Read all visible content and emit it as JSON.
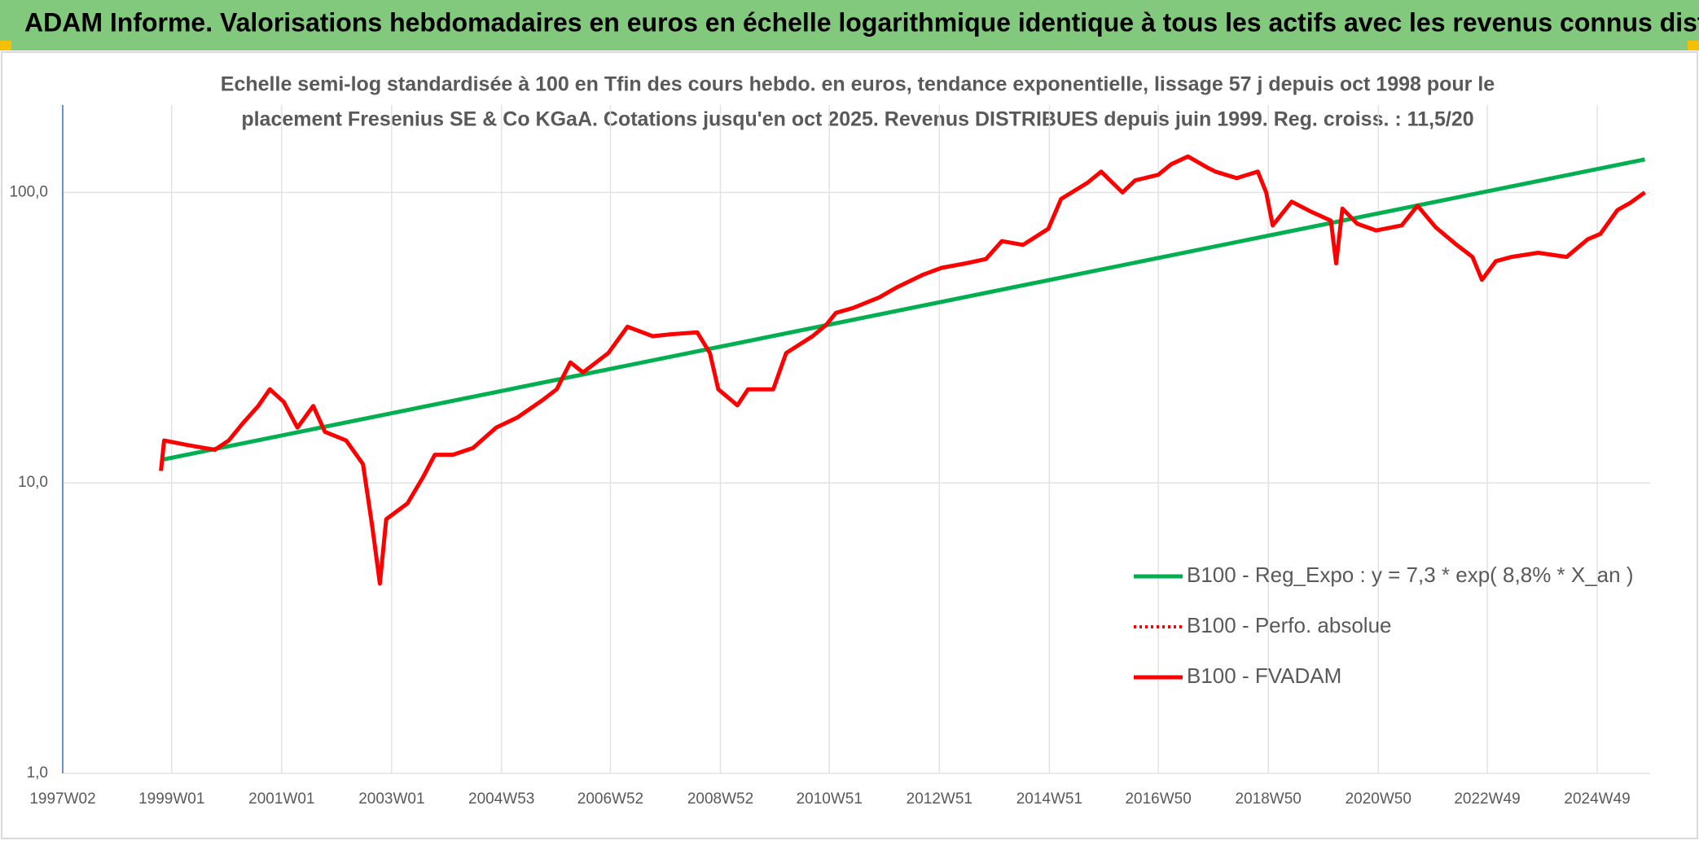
{
  "header": {
    "title": "ADAM Informe. Valorisations hebdomadaires en euros en échelle logarithmique identique à tous les actifs avec les revenus connus distribués"
  },
  "chart_data": {
    "type": "line",
    "title_lines": [
      "Echelle semi-log standardisée à 100 en Tfin des cours hebdo. en euros, tendance exponentielle, lissage 57 j depuis oct 1998 pour le",
      "placement Fresenius SE & Co KGaA. Cotations jusqu'en oct 2025. Revenus DISTRIBUES depuis juin 1999. Reg. croiss. : 11,5/20"
    ],
    "log_y": true,
    "grid": true,
    "legend": "right",
    "xlim": [
      "1997W02",
      "2025W47"
    ],
    "xticks": [
      "1997W02",
      "1999W01",
      "2001W01",
      "2003W01",
      "2004W53",
      "2006W52",
      "2008W52",
      "2010W51",
      "2012W51",
      "2014W51",
      "2016W50",
      "2018W50",
      "2020W50",
      "2022W49",
      "2024W49"
    ],
    "ylim": [
      1,
      200
    ],
    "yticks": [
      {
        "value": 1,
        "label": "1,0"
      },
      {
        "value": 10,
        "label": "10,0"
      },
      {
        "value": 100,
        "label": "100,0"
      }
    ],
    "x": [
      "1998W43",
      "1998W46",
      "1999W16",
      "1999W42",
      "2000W03",
      "2000W16",
      "2000W31",
      "2000W42",
      "2001W03",
      "2001W16",
      "2001W31",
      "2001W42",
      "2002W10",
      "2002W26",
      "2002W35",
      "2002W42",
      "2002W48",
      "2003W16",
      "2003W31",
      "2003W42",
      "2004W07",
      "2004W26",
      "2004W48",
      "2005W16",
      "2005W40",
      "2006W01",
      "2006W14",
      "2006W26",
      "2006W50",
      "2007W16",
      "2007W40",
      "2008W05",
      "2008W30",
      "2008W42",
      "2008W50",
      "2009W16",
      "2009W26",
      "2009W50",
      "2010W10",
      "2010W35",
      "2010W48",
      "2011W05",
      "2011W21",
      "2011W46",
      "2012W10",
      "2012W35",
      "2013W01",
      "2013W24",
      "2013W43",
      "2014W06",
      "2014W26",
      "2014W50",
      "2015W10",
      "2015W35",
      "2015W48",
      "2016W16",
      "2016W28",
      "2016W50",
      "2017W10",
      "2017W26",
      "2017W44",
      "2017W52",
      "2018W20",
      "2018W40",
      "2018W48",
      "2019W02",
      "2019W20",
      "2019W38",
      "2020W05",
      "2020W10",
      "2020W16",
      "2020W30",
      "2020W48",
      "2021W20",
      "2021W35",
      "2021W52",
      "2022W20",
      "2022W35",
      "2022W44",
      "2023W05",
      "2023W20",
      "2023W45",
      "2024W20",
      "2024W40",
      "2024W52",
      "2025W16",
      "2025W28",
      "2025W42"
    ],
    "series": [
      {
        "name": "B100 - Reg_Expo : y = 7,3 * exp( 8,8% *  X_an )",
        "color": "#00b050",
        "style": "solid",
        "x": [
          "1998W43",
          "2025W42"
        ],
        "values": [
          12,
          130
        ]
      },
      {
        "name": "B100 - Perfo. absolue",
        "color": "#ff0000",
        "style": "dotted",
        "values": [
          11,
          14,
          13.5,
          13,
          14,
          16,
          18.4,
          21,
          19,
          15.5,
          18.4,
          15,
          14,
          11.6,
          7,
          4.5,
          7.5,
          8.5,
          10.5,
          12.5,
          12.5,
          13.2,
          15.5,
          16.8,
          19.3,
          21,
          26,
          24,
          28,
          34.5,
          32,
          32.5,
          33,
          28,
          21,
          18.5,
          21,
          21,
          28,
          32,
          35,
          38.5,
          40,
          43.5,
          47,
          52,
          55,
          57,
          59,
          68,
          66,
          75,
          95,
          108,
          118,
          100,
          110,
          115,
          125,
          133,
          122,
          118,
          112,
          118,
          100,
          77,
          93,
          86,
          80,
          57,
          88,
          78,
          74,
          77,
          90,
          76,
          66,
          60,
          50,
          58,
          60,
          62,
          60,
          69,
          72,
          87,
          92,
          100
        ]
      },
      {
        "name": "B100 - FVADAM",
        "color": "#ff0000",
        "style": "solid",
        "values": [
          11,
          14,
          13.5,
          13,
          14,
          16,
          18.4,
          21,
          19,
          15.5,
          18.4,
          15,
          14,
          11.6,
          7,
          4.5,
          7.5,
          8.5,
          10.5,
          12.5,
          12.5,
          13.2,
          15.5,
          16.8,
          19.3,
          21,
          26,
          24,
          28,
          34.5,
          32,
          32.5,
          33,
          28,
          21,
          18.5,
          21,
          21,
          28,
          32,
          35,
          38.5,
          40,
          43.5,
          47,
          52,
          55,
          57,
          59,
          68,
          66,
          75,
          95,
          108,
          118,
          100,
          110,
          115,
          125,
          133,
          122,
          118,
          112,
          118,
          100,
          77,
          93,
          86,
          80,
          57,
          88,
          78,
          74,
          77,
          90,
          76,
          66,
          60,
          50,
          58,
          60,
          62,
          60,
          69,
          72,
          87,
          92,
          100
        ]
      }
    ]
  }
}
